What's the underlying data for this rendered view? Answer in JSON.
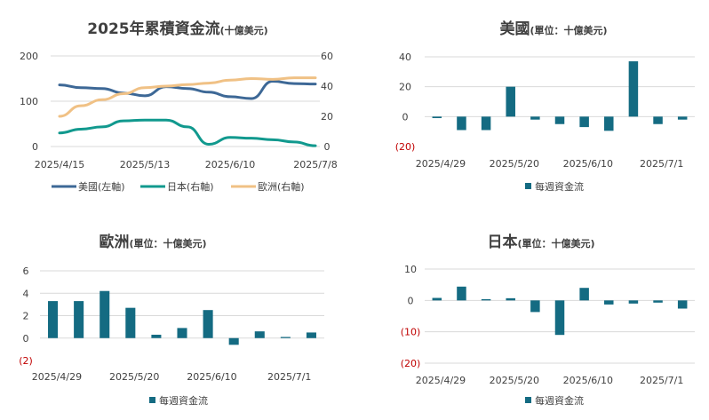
{
  "chart_data": [
    {
      "type": "line",
      "title": "2025年累積資金流",
      "title_unit": "(十億美元)",
      "x_tick_labels": [
        "2025/4/15",
        "2025/5/13",
        "2025/6/10",
        "2025/7/8"
      ],
      "left_axis": {
        "ticks": [
          "0",
          "100",
          "200"
        ],
        "ylim": [
          0,
          200
        ]
      },
      "right_axis": {
        "ticks": [
          "0",
          "20",
          "40",
          "60"
        ],
        "ylim": [
          0,
          60
        ]
      },
      "x_dates": [
        "2025/4/15",
        "2025/4/22",
        "2025/4/29",
        "2025/5/6",
        "2025/5/13",
        "2025/5/20",
        "2025/5/27",
        "2025/6/3",
        "2025/6/10",
        "2025/6/17",
        "2025/6/24",
        "2025/7/1",
        "2025/7/8"
      ],
      "series": [
        {
          "name": "美國(左軸)",
          "axis": "left",
          "color": "#3d6896",
          "values": [
            136,
            130,
            128,
            118,
            112,
            132,
            128,
            120,
            110,
            106,
            144,
            139,
            138
          ]
        },
        {
          "name": "日本(右軸)",
          "axis": "right",
          "color": "#11998e",
          "values": [
            9,
            11.5,
            13,
            17,
            17.5,
            17.5,
            13,
            1.5,
            6,
            5.5,
            4.5,
            3,
            0.5
          ]
        },
        {
          "name": "歐洲(右軸)",
          "axis": "right",
          "color": "#f0c185",
          "values": [
            20,
            27,
            31,
            35,
            39,
            40,
            41,
            42,
            44,
            45,
            44.5,
            45.5,
            45.5
          ]
        }
      ],
      "legend": "bottom"
    },
    {
      "type": "bar",
      "title": "美國",
      "title_unit": "(單位：十億美元)",
      "y_ticks": [
        "40",
        "20",
        "0",
        "(20)"
      ],
      "ylim": [
        -20,
        40
      ],
      "x_tick_labels": [
        "2025/4/29",
        "2025/5/20",
        "2025/6/10",
        "2025/7/1"
      ],
      "series": [
        {
          "name": "每週資金流",
          "color": "#146b82",
          "values": [
            -1,
            -9,
            -9,
            20,
            -2,
            -5,
            -7,
            -9.5,
            37,
            -5,
            -2
          ]
        }
      ],
      "legend": "bottom"
    },
    {
      "type": "bar",
      "title": "歐洲",
      "title_unit": "(單位：十億美元)",
      "y_ticks": [
        "6",
        "4",
        "2",
        "0",
        "(2)"
      ],
      "ylim": [
        -2,
        6
      ],
      "x_tick_labels": [
        "2025/4/29",
        "2025/5/20",
        "2025/6/10",
        "2025/7/1"
      ],
      "series": [
        {
          "name": "每週資金流",
          "color": "#146b82",
          "values": [
            3.3,
            3.3,
            4.2,
            2.7,
            0.3,
            0.9,
            2.5,
            -0.6,
            0.6,
            0.1,
            0.5
          ]
        }
      ],
      "legend": "bottom"
    },
    {
      "type": "bar",
      "title": "日本",
      "title_unit": "(單位：十億美元)",
      "y_ticks": [
        "10",
        "0",
        "(10)",
        "(20)"
      ],
      "ylim": [
        -20,
        10
      ],
      "x_tick_labels": [
        "2025/4/29",
        "2025/5/20",
        "2025/6/10",
        "2025/7/1"
      ],
      "series": [
        {
          "name": "每週資金流",
          "color": "#146b82",
          "values": [
            0.8,
            4.4,
            0.4,
            0.7,
            -3.7,
            -11,
            4,
            -1.3,
            -1,
            -0.7,
            -2.6
          ]
        }
      ],
      "legend": "bottom"
    }
  ]
}
